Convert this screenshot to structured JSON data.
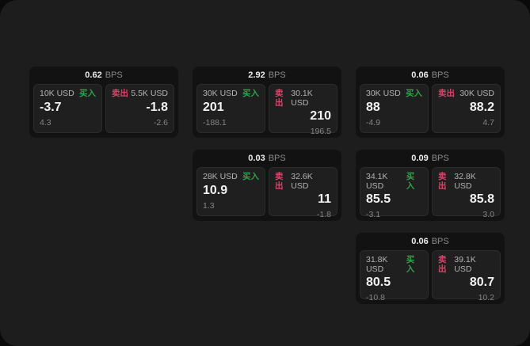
{
  "labels": {
    "bps": "BPS",
    "buy": "买入",
    "sell": "卖出"
  },
  "colors": {
    "buy_green": "#2fa24d",
    "sell_red": "#d9456a",
    "page_background": "#1d1d1d",
    "card_background": "#121212",
    "panel_background": "#1f1f1f"
  },
  "cards": [
    {
      "bps": "0.62",
      "buy": {
        "amount": "10K USD",
        "value": "-3.7",
        "sub": "4.3"
      },
      "sell": {
        "amount": "5.5K USD",
        "value": "-1.8",
        "sub": "-2.6"
      }
    },
    {
      "bps": "2.92",
      "buy": {
        "amount": "30K USD",
        "value": "201",
        "sub": "-188.1"
      },
      "sell": {
        "amount": "30.1K USD",
        "value": "210",
        "sub": "196.5"
      }
    },
    {
      "bps": "0.06",
      "buy": {
        "amount": "30K USD",
        "value": "88",
        "sub": "-4.9"
      },
      "sell": {
        "amount": "30K USD",
        "value": "88.2",
        "sub": "4.7"
      }
    },
    {
      "bps": "0.03",
      "buy": {
        "amount": "28K USD",
        "value": "10.9",
        "sub": "1.3"
      },
      "sell": {
        "amount": "32.6K USD",
        "value": "11",
        "sub": "-1.8"
      }
    },
    {
      "bps": "0.09",
      "buy": {
        "amount": "34.1K USD",
        "value": "85.5",
        "sub": "-3.1"
      },
      "sell": {
        "amount": "32.8K USD",
        "value": "85.8",
        "sub": "3.0"
      }
    },
    {
      "bps": "0.06",
      "buy": {
        "amount": "31.8K USD",
        "value": "80.5",
        "sub": "-10.8"
      },
      "sell": {
        "amount": "39.1K USD",
        "value": "80.7",
        "sub": "10.2"
      }
    }
  ]
}
